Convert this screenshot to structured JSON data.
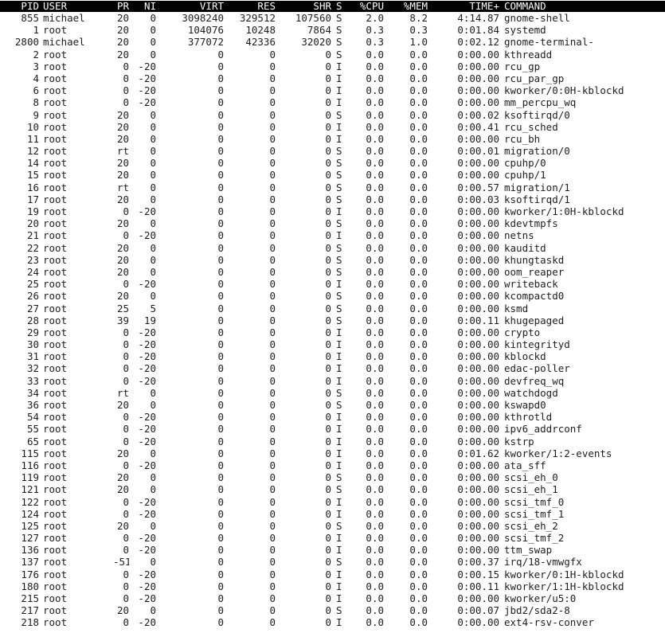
{
  "header": {
    "pid": "PID",
    "user": "USER",
    "pr": "PR",
    "ni": "NI",
    "virt": "VIRT",
    "res": "RES",
    "shr": "SHR",
    "s": "S",
    "cpu": "%CPU",
    "mem": "%MEM",
    "time": "TIME+",
    "command": "COMMAND"
  },
  "processes": [
    [
      "855",
      "michael",
      "20",
      "0",
      "3098240",
      "329512",
      "107560",
      "S",
      "2.0",
      "8.2",
      "4:14.87",
      "gnome-shell"
    ],
    [
      "1",
      "root",
      "20",
      "0",
      "104076",
      "10248",
      "7864",
      "S",
      "0.3",
      "0.3",
      "0:01.84",
      "systemd"
    ],
    [
      "2800",
      "michael",
      "20",
      "0",
      "377072",
      "42336",
      "32020",
      "S",
      "0.3",
      "1.0",
      "0:02.12",
      "gnome-terminal-"
    ],
    [
      "2",
      "root",
      "20",
      "0",
      "0",
      "0",
      "0",
      "S",
      "0.0",
      "0.0",
      "0:00.00",
      "kthreadd"
    ],
    [
      "3",
      "root",
      "0",
      "-20",
      "0",
      "0",
      "0",
      "I",
      "0.0",
      "0.0",
      "0:00.00",
      "rcu_gp"
    ],
    [
      "4",
      "root",
      "0",
      "-20",
      "0",
      "0",
      "0",
      "I",
      "0.0",
      "0.0",
      "0:00.00",
      "rcu_par_gp"
    ],
    [
      "6",
      "root",
      "0",
      "-20",
      "0",
      "0",
      "0",
      "I",
      "0.0",
      "0.0",
      "0:00.00",
      "kworker/0:0H-kblockd"
    ],
    [
      "8",
      "root",
      "0",
      "-20",
      "0",
      "0",
      "0",
      "I",
      "0.0",
      "0.0",
      "0:00.00",
      "mm_percpu_wq"
    ],
    [
      "9",
      "root",
      "20",
      "0",
      "0",
      "0",
      "0",
      "S",
      "0.0",
      "0.0",
      "0:00.02",
      "ksoftirqd/0"
    ],
    [
      "10",
      "root",
      "20",
      "0",
      "0",
      "0",
      "0",
      "I",
      "0.0",
      "0.0",
      "0:00.41",
      "rcu_sched"
    ],
    [
      "11",
      "root",
      "20",
      "0",
      "0",
      "0",
      "0",
      "I",
      "0.0",
      "0.0",
      "0:00.00",
      "rcu_bh"
    ],
    [
      "12",
      "root",
      "rt",
      "0",
      "0",
      "0",
      "0",
      "S",
      "0.0",
      "0.0",
      "0:00.01",
      "migration/0"
    ],
    [
      "14",
      "root",
      "20",
      "0",
      "0",
      "0",
      "0",
      "S",
      "0.0",
      "0.0",
      "0:00.00",
      "cpuhp/0"
    ],
    [
      "15",
      "root",
      "20",
      "0",
      "0",
      "0",
      "0",
      "S",
      "0.0",
      "0.0",
      "0:00.00",
      "cpuhp/1"
    ],
    [
      "16",
      "root",
      "rt",
      "0",
      "0",
      "0",
      "0",
      "S",
      "0.0",
      "0.0",
      "0:00.57",
      "migration/1"
    ],
    [
      "17",
      "root",
      "20",
      "0",
      "0",
      "0",
      "0",
      "S",
      "0.0",
      "0.0",
      "0:00.03",
      "ksoftirqd/1"
    ],
    [
      "19",
      "root",
      "0",
      "-20",
      "0",
      "0",
      "0",
      "I",
      "0.0",
      "0.0",
      "0:00.00",
      "kworker/1:0H-kblockd"
    ],
    [
      "20",
      "root",
      "20",
      "0",
      "0",
      "0",
      "0",
      "S",
      "0.0",
      "0.0",
      "0:00.00",
      "kdevtmpfs"
    ],
    [
      "21",
      "root",
      "0",
      "-20",
      "0",
      "0",
      "0",
      "I",
      "0.0",
      "0.0",
      "0:00.00",
      "netns"
    ],
    [
      "22",
      "root",
      "20",
      "0",
      "0",
      "0",
      "0",
      "S",
      "0.0",
      "0.0",
      "0:00.00",
      "kauditd"
    ],
    [
      "23",
      "root",
      "20",
      "0",
      "0",
      "0",
      "0",
      "S",
      "0.0",
      "0.0",
      "0:00.00",
      "khungtaskd"
    ],
    [
      "24",
      "root",
      "20",
      "0",
      "0",
      "0",
      "0",
      "S",
      "0.0",
      "0.0",
      "0:00.00",
      "oom_reaper"
    ],
    [
      "25",
      "root",
      "0",
      "-20",
      "0",
      "0",
      "0",
      "I",
      "0.0",
      "0.0",
      "0:00.00",
      "writeback"
    ],
    [
      "26",
      "root",
      "20",
      "0",
      "0",
      "0",
      "0",
      "S",
      "0.0",
      "0.0",
      "0:00.00",
      "kcompactd0"
    ],
    [
      "27",
      "root",
      "25",
      "5",
      "0",
      "0",
      "0",
      "S",
      "0.0",
      "0.0",
      "0:00.00",
      "ksmd"
    ],
    [
      "28",
      "root",
      "39",
      "19",
      "0",
      "0",
      "0",
      "S",
      "0.0",
      "0.0",
      "0:00.11",
      "khugepaged"
    ],
    [
      "29",
      "root",
      "0",
      "-20",
      "0",
      "0",
      "0",
      "I",
      "0.0",
      "0.0",
      "0:00.00",
      "crypto"
    ],
    [
      "30",
      "root",
      "0",
      "-20",
      "0",
      "0",
      "0",
      "I",
      "0.0",
      "0.0",
      "0:00.00",
      "kintegrityd"
    ],
    [
      "31",
      "root",
      "0",
      "-20",
      "0",
      "0",
      "0",
      "I",
      "0.0",
      "0.0",
      "0:00.00",
      "kblockd"
    ],
    [
      "32",
      "root",
      "0",
      "-20",
      "0",
      "0",
      "0",
      "I",
      "0.0",
      "0.0",
      "0:00.00",
      "edac-poller"
    ],
    [
      "33",
      "root",
      "0",
      "-20",
      "0",
      "0",
      "0",
      "I",
      "0.0",
      "0.0",
      "0:00.00",
      "devfreq_wq"
    ],
    [
      "34",
      "root",
      "rt",
      "0",
      "0",
      "0",
      "0",
      "S",
      "0.0",
      "0.0",
      "0:00.00",
      "watchdogd"
    ],
    [
      "36",
      "root",
      "20",
      "0",
      "0",
      "0",
      "0",
      "S",
      "0.0",
      "0.0",
      "0:00.00",
      "kswapd0"
    ],
    [
      "54",
      "root",
      "0",
      "-20",
      "0",
      "0",
      "0",
      "I",
      "0.0",
      "0.0",
      "0:00.00",
      "kthrotld"
    ],
    [
      "55",
      "root",
      "0",
      "-20",
      "0",
      "0",
      "0",
      "I",
      "0.0",
      "0.0",
      "0:00.00",
      "ipv6_addrconf"
    ],
    [
      "65",
      "root",
      "0",
      "-20",
      "0",
      "0",
      "0",
      "I",
      "0.0",
      "0.0",
      "0:00.00",
      "kstrp"
    ],
    [
      "115",
      "root",
      "20",
      "0",
      "0",
      "0",
      "0",
      "I",
      "0.0",
      "0.0",
      "0:01.62",
      "kworker/1:2-events"
    ],
    [
      "116",
      "root",
      "0",
      "-20",
      "0",
      "0",
      "0",
      "I",
      "0.0",
      "0.0",
      "0:00.00",
      "ata_sff"
    ],
    [
      "119",
      "root",
      "20",
      "0",
      "0",
      "0",
      "0",
      "S",
      "0.0",
      "0.0",
      "0:00.00",
      "scsi_eh_0"
    ],
    [
      "121",
      "root",
      "20",
      "0",
      "0",
      "0",
      "0",
      "S",
      "0.0",
      "0.0",
      "0:00.00",
      "scsi_eh_1"
    ],
    [
      "122",
      "root",
      "0",
      "-20",
      "0",
      "0",
      "0",
      "I",
      "0.0",
      "0.0",
      "0:00.00",
      "scsi_tmf_0"
    ],
    [
      "124",
      "root",
      "0",
      "-20",
      "0",
      "0",
      "0",
      "I",
      "0.0",
      "0.0",
      "0:00.00",
      "scsi_tmf_1"
    ],
    [
      "125",
      "root",
      "20",
      "0",
      "0",
      "0",
      "0",
      "S",
      "0.0",
      "0.0",
      "0:00.00",
      "scsi_eh_2"
    ],
    [
      "127",
      "root",
      "0",
      "-20",
      "0",
      "0",
      "0",
      "I",
      "0.0",
      "0.0",
      "0:00.00",
      "scsi_tmf_2"
    ],
    [
      "136",
      "root",
      "0",
      "-20",
      "0",
      "0",
      "0",
      "I",
      "0.0",
      "0.0",
      "0:00.00",
      "ttm_swap"
    ],
    [
      "137",
      "root",
      "-51",
      "0",
      "0",
      "0",
      "0",
      "S",
      "0.0",
      "0.0",
      "0:00.37",
      "irq/18-vmwgfx"
    ],
    [
      "176",
      "root",
      "0",
      "-20",
      "0",
      "0",
      "0",
      "I",
      "0.0",
      "0.0",
      "0:00.15",
      "kworker/0:1H-kblockd"
    ],
    [
      "180",
      "root",
      "0",
      "-20",
      "0",
      "0",
      "0",
      "I",
      "0.0",
      "0.0",
      "0:00.11",
      "kworker/1:1H-kblockd"
    ],
    [
      "215",
      "root",
      "0",
      "-20",
      "0",
      "0",
      "0",
      "I",
      "0.0",
      "0.0",
      "0:00.00",
      "kworker/u5:0"
    ],
    [
      "217",
      "root",
      "20",
      "0",
      "0",
      "0",
      "0",
      "S",
      "0.0",
      "0.0",
      "0:00.07",
      "jbd2/sda2-8"
    ],
    [
      "218",
      "root",
      "0",
      "-20",
      "0",
      "0",
      "0",
      "I",
      "0.0",
      "0.0",
      "0:00.00",
      "ext4-rsv-conver"
    ]
  ]
}
